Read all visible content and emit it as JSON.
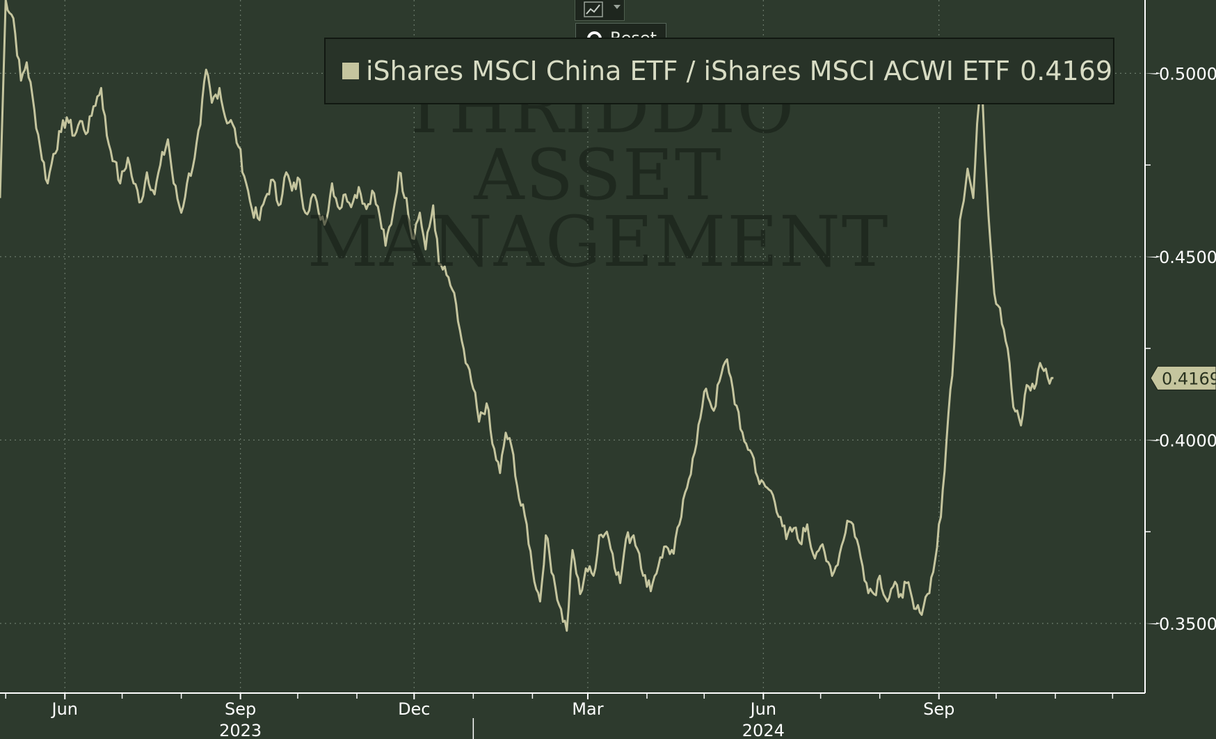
{
  "colors": {
    "background": "#2d3a2d",
    "line": "#c5c59e",
    "grid": "#6b7a6b",
    "axis": "#ffffff",
    "tooltip_bg": "#1e261e"
  },
  "toolbar": {
    "chart_type_icon": "line-chart-icon",
    "dropdown_icon": "chevron-down-icon",
    "reset_icon": "radio-icon",
    "reset_label": "Reset"
  },
  "watermark": {
    "lines": [
      "THRIDDIO",
      "ASSET",
      "MANAGEMENT"
    ]
  },
  "legend": {
    "series_name": "iShares MSCI China ETF / iShares MSCI ACWI ETF",
    "value": "0.4169"
  },
  "chart_data": {
    "type": "line",
    "title": "",
    "xlabel": "",
    "ylabel": "",
    "series": [
      {
        "name": "iShares MSCI China ETF / iShares MSCI ACWI ETF",
        "points": [
          [
            "2023-04-28",
            0.466
          ],
          [
            "2023-05-01",
            0.52
          ],
          [
            "2023-05-05",
            0.515
          ],
          [
            "2023-05-09",
            0.498
          ],
          [
            "2023-05-12",
            0.503
          ],
          [
            "2023-05-16",
            0.49
          ],
          [
            "2023-05-19",
            0.48
          ],
          [
            "2023-05-23",
            0.47
          ],
          [
            "2023-05-26",
            0.478
          ],
          [
            "2023-05-30",
            0.484
          ],
          [
            "2023-06-02",
            0.488
          ],
          [
            "2023-06-06",
            0.483
          ],
          [
            "2023-06-09",
            0.487
          ],
          [
            "2023-06-13",
            0.484
          ],
          [
            "2023-06-16",
            0.491
          ],
          [
            "2023-06-20",
            0.496
          ],
          [
            "2023-06-23",
            0.483
          ],
          [
            "2023-06-27",
            0.476
          ],
          [
            "2023-06-30",
            0.47
          ],
          [
            "2023-07-04",
            0.477
          ],
          [
            "2023-07-07",
            0.47
          ],
          [
            "2023-07-11",
            0.465
          ],
          [
            "2023-07-14",
            0.473
          ],
          [
            "2023-07-18",
            0.467
          ],
          [
            "2023-07-21",
            0.475
          ],
          [
            "2023-07-25",
            0.482
          ],
          [
            "2023-07-28",
            0.47
          ],
          [
            "2023-08-01",
            0.462
          ],
          [
            "2023-08-04",
            0.47
          ],
          [
            "2023-08-08",
            0.477
          ],
          [
            "2023-08-11",
            0.486
          ],
          [
            "2023-08-14",
            0.501
          ],
          [
            "2023-08-17",
            0.492
          ],
          [
            "2023-08-21",
            0.496
          ],
          [
            "2023-08-24",
            0.488
          ],
          [
            "2023-08-28",
            0.486
          ],
          [
            "2023-08-31",
            0.48
          ],
          [
            "2023-09-04",
            0.47
          ],
          [
            "2023-09-07",
            0.463
          ],
          [
            "2023-09-11",
            0.46
          ],
          [
            "2023-09-14",
            0.466
          ],
          [
            "2023-09-18",
            0.471
          ],
          [
            "2023-09-21",
            0.464
          ],
          [
            "2023-09-25",
            0.473
          ],
          [
            "2023-09-28",
            0.468
          ],
          [
            "2023-10-02",
            0.471
          ],
          [
            "2023-10-05",
            0.462
          ],
          [
            "2023-10-09",
            0.467
          ],
          [
            "2023-10-12",
            0.462
          ],
          [
            "2023-10-16",
            0.46
          ],
          [
            "2023-10-19",
            0.47
          ],
          [
            "2023-10-23",
            0.463
          ],
          [
            "2023-10-26",
            0.467
          ],
          [
            "2023-10-30",
            0.465
          ],
          [
            "2023-11-02",
            0.469
          ],
          [
            "2023-11-06",
            0.463
          ],
          [
            "2023-11-09",
            0.468
          ],
          [
            "2023-11-13",
            0.461
          ],
          [
            "2023-11-16",
            0.453
          ],
          [
            "2023-11-20",
            0.462
          ],
          [
            "2023-11-23",
            0.473
          ],
          [
            "2023-11-27",
            0.466
          ],
          [
            "2023-11-30",
            0.455
          ],
          [
            "2023-12-04",
            0.462
          ],
          [
            "2023-12-07",
            0.452
          ],
          [
            "2023-12-11",
            0.464
          ],
          [
            "2023-12-14",
            0.448
          ],
          [
            "2023-12-18",
            0.445
          ],
          [
            "2023-12-21",
            0.441
          ],
          [
            "2023-12-25",
            0.43
          ],
          [
            "2023-12-28",
            0.421
          ],
          [
            "2024-01-01",
            0.414
          ],
          [
            "2024-01-04",
            0.405
          ],
          [
            "2024-01-08",
            0.41
          ],
          [
            "2024-01-11",
            0.399
          ],
          [
            "2024-01-15",
            0.391
          ],
          [
            "2024-01-18",
            0.402
          ],
          [
            "2024-01-22",
            0.396
          ],
          [
            "2024-01-25",
            0.384
          ],
          [
            "2024-01-29",
            0.377
          ],
          [
            "2024-02-01",
            0.365
          ],
          [
            "2024-02-05",
            0.356
          ],
          [
            "2024-02-08",
            0.374
          ],
          [
            "2024-02-12",
            0.363
          ],
          [
            "2024-02-15",
            0.355
          ],
          [
            "2024-02-19",
            0.348
          ],
          [
            "2024-02-22",
            0.37
          ],
          [
            "2024-02-26",
            0.358
          ],
          [
            "2024-02-29",
            0.365
          ],
          [
            "2024-03-04",
            0.363
          ],
          [
            "2024-03-07",
            0.374
          ],
          [
            "2024-03-11",
            0.375
          ],
          [
            "2024-03-14",
            0.369
          ],
          [
            "2024-03-18",
            0.361
          ],
          [
            "2024-03-21",
            0.373
          ],
          [
            "2024-03-25",
            0.374
          ],
          [
            "2024-03-28",
            0.369
          ],
          [
            "2024-04-01",
            0.36
          ],
          [
            "2024-04-04",
            0.361
          ],
          [
            "2024-04-08",
            0.368
          ],
          [
            "2024-04-11",
            0.371
          ],
          [
            "2024-04-15",
            0.369
          ],
          [
            "2024-04-18",
            0.377
          ],
          [
            "2024-04-22",
            0.387
          ],
          [
            "2024-04-25",
            0.395
          ],
          [
            "2024-04-29",
            0.406
          ],
          [
            "2024-05-02",
            0.414
          ],
          [
            "2024-05-06",
            0.408
          ],
          [
            "2024-05-09",
            0.416
          ],
          [
            "2024-05-13",
            0.422
          ],
          [
            "2024-05-16",
            0.414
          ],
          [
            "2024-05-20",
            0.403
          ],
          [
            "2024-05-23",
            0.399
          ],
          [
            "2024-05-27",
            0.395
          ],
          [
            "2024-05-30",
            0.388
          ],
          [
            "2024-06-03",
            0.387
          ],
          [
            "2024-06-06",
            0.385
          ],
          [
            "2024-06-10",
            0.379
          ],
          [
            "2024-06-13",
            0.373
          ],
          [
            "2024-06-17",
            0.376
          ],
          [
            "2024-06-20",
            0.372
          ],
          [
            "2024-06-24",
            0.377
          ],
          [
            "2024-06-27",
            0.369
          ],
          [
            "2024-07-01",
            0.371
          ],
          [
            "2024-07-04",
            0.367
          ],
          [
            "2024-07-08",
            0.364
          ],
          [
            "2024-07-11",
            0.369
          ],
          [
            "2024-07-15",
            0.378
          ],
          [
            "2024-07-18",
            0.377
          ],
          [
            "2024-07-22",
            0.368
          ],
          [
            "2024-07-25",
            0.361
          ],
          [
            "2024-07-29",
            0.358
          ],
          [
            "2024-08-01",
            0.363
          ],
          [
            "2024-08-05",
            0.356
          ],
          [
            "2024-08-08",
            0.36
          ],
          [
            "2024-08-12",
            0.358
          ],
          [
            "2024-08-15",
            0.361
          ],
          [
            "2024-08-19",
            0.354
          ],
          [
            "2024-08-22",
            0.353
          ],
          [
            "2024-08-26",
            0.358
          ],
          [
            "2024-08-29",
            0.364
          ],
          [
            "2024-09-02",
            0.379
          ],
          [
            "2024-09-05",
            0.4
          ],
          [
            "2024-09-09",
            0.426
          ],
          [
            "2024-09-12",
            0.46
          ],
          [
            "2024-09-16",
            0.474
          ],
          [
            "2024-09-19",
            0.466
          ],
          [
            "2024-09-23",
            0.503
          ],
          [
            "2024-09-26",
            0.47
          ],
          [
            "2024-09-30",
            0.44
          ],
          [
            "2024-10-03",
            0.436
          ],
          [
            "2024-10-07",
            0.425
          ],
          [
            "2024-10-10",
            0.409
          ],
          [
            "2024-10-14",
            0.404
          ],
          [
            "2024-10-17",
            0.415
          ],
          [
            "2024-10-21",
            0.414
          ],
          [
            "2024-10-24",
            0.421
          ],
          [
            "2024-10-28",
            0.417
          ],
          [
            "2024-10-31",
            0.4169
          ]
        ]
      }
    ],
    "ylim": [
      0.331,
      0.52
    ],
    "xlim": [
      "2023-04-28",
      "2024-12-18"
    ],
    "y_ticks": [
      {
        "value": 0.35,
        "label": "0.3500"
      },
      {
        "value": 0.4,
        "label": "0.4000"
      },
      {
        "value": 0.45,
        "label": "0.4500"
      },
      {
        "value": 0.5,
        "label": "0.5000"
      }
    ],
    "y_minor_ticks": [
      0.375,
      0.425,
      0.475
    ],
    "x_ticks": [
      {
        "date": "2023-06-01",
        "label": "Jun"
      },
      {
        "date": "2023-09-01",
        "label": "Sep"
      },
      {
        "date": "2023-12-01",
        "label": "Dec"
      },
      {
        "date": "2024-03-01",
        "label": "Mar"
      },
      {
        "date": "2024-06-01",
        "label": "Jun"
      },
      {
        "date": "2024-09-01",
        "label": "Sep"
      }
    ],
    "x_minor_ticks": [
      "2023-05-01",
      "2023-07-01",
      "2023-08-01",
      "2023-10-01",
      "2023-11-01",
      "2024-01-01",
      "2024-02-01",
      "2024-04-01",
      "2024-05-01",
      "2024-07-01",
      "2024-08-01",
      "2024-10-01",
      "2024-11-01",
      "2024-12-01"
    ],
    "year_labels": [
      {
        "date": "2023-09-01",
        "label": "2023"
      },
      {
        "date": "2024-06-01",
        "label": "2024"
      }
    ],
    "year_divider": "2024-01-01",
    "last_value": {
      "value": 0.4169,
      "label": "0.4169"
    },
    "grid": true,
    "legend_position": "top"
  }
}
